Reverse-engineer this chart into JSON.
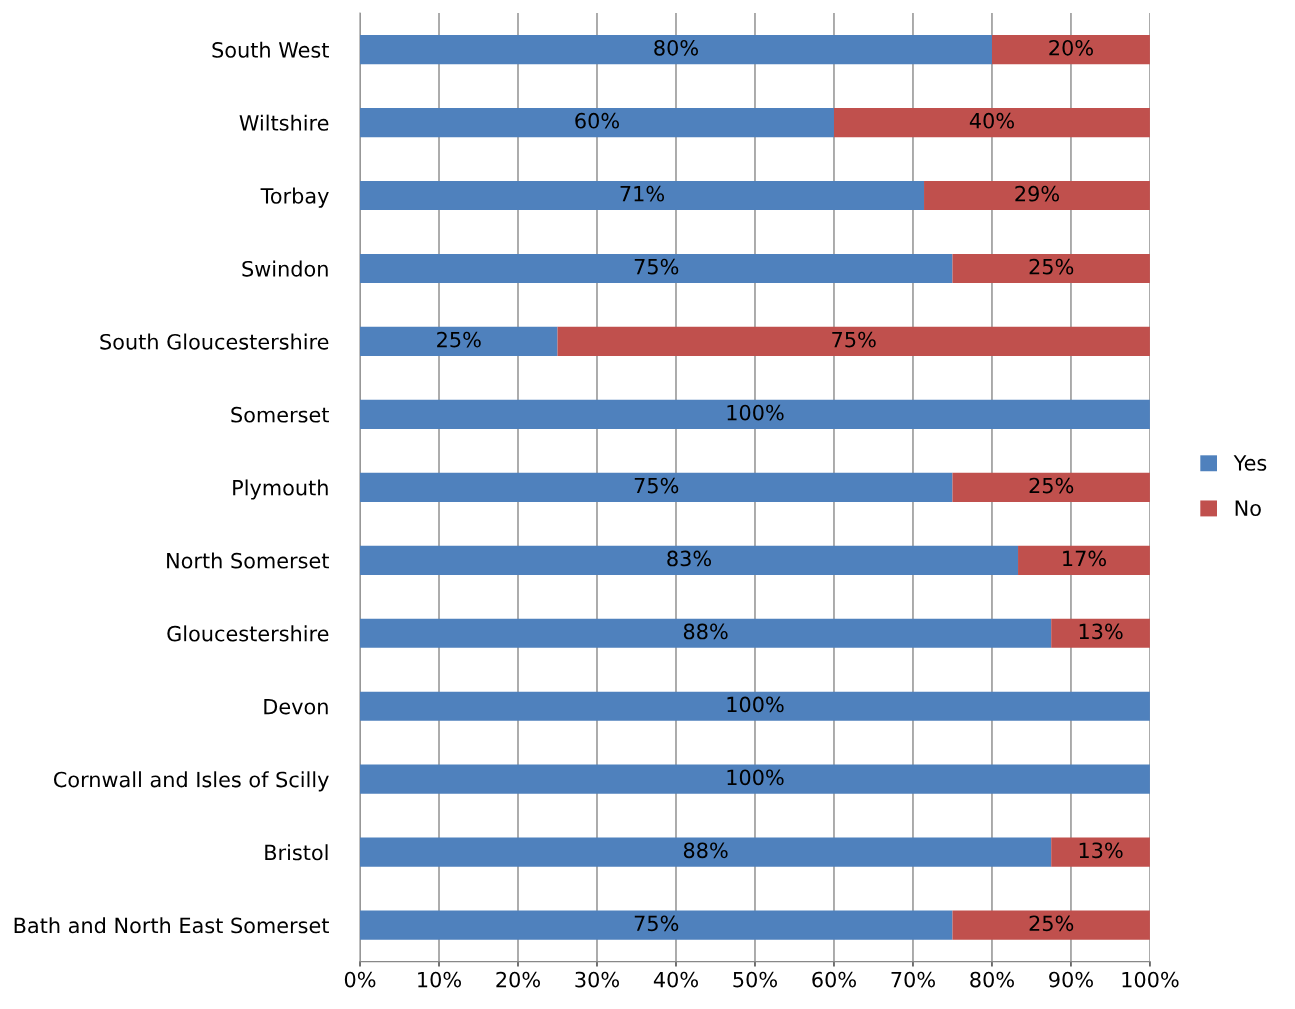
{
  "chart_data": {
    "type": "bar",
    "orientation": "horizontal",
    "stacked": true,
    "categories": [
      "South West",
      "Wiltshire",
      "Torbay",
      "Swindon",
      "South Gloucestershire",
      "Somerset",
      "Plymouth",
      "North Somerset",
      "Gloucestershire",
      "Devon",
      "Cornwall and Isles of Scilly",
      "Bristol",
      "Bath and North East Somerset"
    ],
    "series": [
      {
        "name": "Yes",
        "color": "#4f81bd",
        "values": [
          80,
          60,
          71.4,
          75,
          25,
          100,
          75,
          83.3,
          87.5,
          100,
          100,
          87.5,
          75
        ],
        "value_labels": [
          "80%",
          "60%",
          "71%",
          "75%",
          "25%",
          "100%",
          "75%",
          "83%",
          "88%",
          "100%",
          "100%",
          "88%",
          "75%"
        ]
      },
      {
        "name": "No",
        "color": "#c0504d",
        "values": [
          20,
          40,
          28.6,
          25,
          75,
          0,
          25,
          16.7,
          12.5,
          0,
          0,
          12.5,
          25
        ],
        "value_labels": [
          "20%",
          "40%",
          "29%",
          "25%",
          "75%",
          null,
          "25%",
          "17%",
          "13%",
          null,
          null,
          "13%",
          "25%"
        ]
      }
    ],
    "xlim": [
      0,
      100
    ],
    "xticks": [
      {
        "value": 0,
        "label": "0%"
      },
      {
        "value": 10,
        "label": "10%"
      },
      {
        "value": 20,
        "label": "20%"
      },
      {
        "value": 30,
        "label": "30%"
      },
      {
        "value": 40,
        "label": "40%"
      },
      {
        "value": 50,
        "label": "50%"
      },
      {
        "value": 60,
        "label": "60%"
      },
      {
        "value": 70,
        "label": "70%"
      },
      {
        "value": 80,
        "label": "80%"
      },
      {
        "value": 90,
        "label": "90%"
      },
      {
        "value": 100,
        "label": "100%"
      }
    ],
    "grid": "x",
    "legend": "right"
  }
}
